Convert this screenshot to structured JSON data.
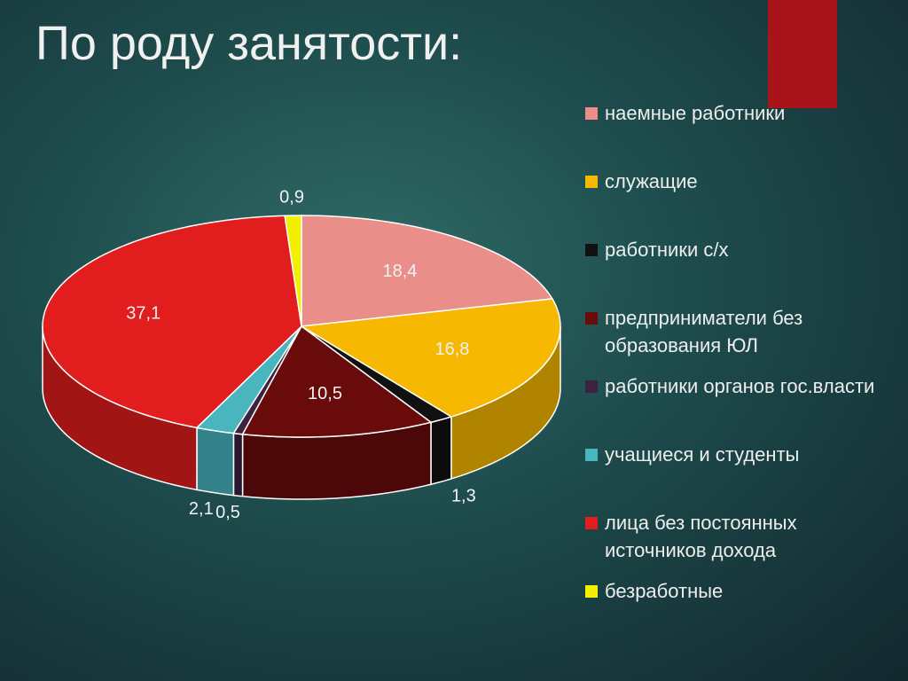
{
  "chart_data": {
    "type": "pie",
    "title": "По роду занятости:",
    "categories": [
      "наемные работники",
      "служащие",
      "работники с/х",
      "предприниматели без образования ЮЛ",
      "работники органов гос.власти",
      "учащиеся и студенты",
      "лица без постоянных источников дохода",
      "безработные"
    ],
    "values": [
      18.4,
      16.8,
      1.3,
      10.5,
      0.5,
      2.1,
      37.1,
      0.9
    ],
    "value_labels": [
      "18,4",
      "16,8",
      "1,3",
      "10,5",
      "0,5",
      "2,1",
      "37,1",
      "0,9"
    ],
    "colors": [
      "#e98e88",
      "#f6b800",
      "#111111",
      "#6a0b0b",
      "#3b2240",
      "#49b6bf",
      "#e11d1d",
      "#f3ef00"
    ],
    "legend": "right"
  }
}
